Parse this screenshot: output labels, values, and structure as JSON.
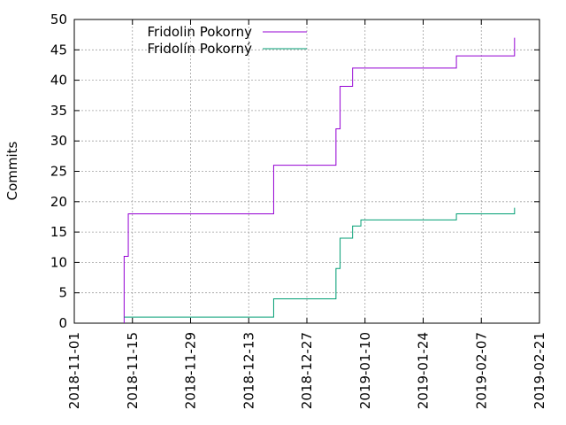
{
  "chart_data": {
    "type": "line",
    "title": "",
    "xlabel": "",
    "ylabel": "Commits",
    "ylim": [
      0,
      50
    ],
    "yticks": [
      0,
      5,
      10,
      15,
      20,
      25,
      30,
      35,
      40,
      45,
      50
    ],
    "xlim": [
      "2018-11-01",
      "2019-02-21"
    ],
    "xticks": [
      "2018-11-01",
      "2018-11-15",
      "2018-11-29",
      "2018-12-13",
      "2018-12-27",
      "2019-01-10",
      "2019-01-24",
      "2019-02-07",
      "2019-02-21"
    ],
    "grid": true,
    "legend_position": "top-left",
    "series": [
      {
        "name": "Fridolin Pokorny",
        "color": "#9400d3",
        "points": [
          [
            "2018-11-13",
            0
          ],
          [
            "2018-11-13",
            7
          ],
          [
            "2018-11-13",
            11
          ],
          [
            "2018-11-14",
            12
          ],
          [
            "2018-11-14",
            18
          ],
          [
            "2018-12-19",
            19
          ],
          [
            "2018-12-19",
            26
          ],
          [
            "2019-01-03",
            27
          ],
          [
            "2019-01-03",
            32
          ],
          [
            "2019-01-04",
            35
          ],
          [
            "2019-01-04",
            39
          ],
          [
            "2019-01-07",
            40
          ],
          [
            "2019-01-07",
            42
          ],
          [
            "2019-02-01",
            43
          ],
          [
            "2019-02-01",
            44
          ],
          [
            "2019-02-15",
            45
          ],
          [
            "2019-02-15",
            47
          ]
        ]
      },
      {
        "name": "Fridolín Pokorný",
        "color": "#009e73",
        "points": [
          [
            "2018-11-13",
            1
          ],
          [
            "2018-12-19",
            1
          ],
          [
            "2018-12-19",
            4
          ],
          [
            "2019-01-03",
            4
          ],
          [
            "2019-01-03",
            9
          ],
          [
            "2019-01-04",
            9
          ],
          [
            "2019-01-04",
            14
          ],
          [
            "2019-01-07",
            14
          ],
          [
            "2019-01-07",
            16
          ],
          [
            "2019-01-09",
            17
          ],
          [
            "2019-02-01",
            17
          ],
          [
            "2019-02-01",
            18
          ],
          [
            "2019-02-15",
            18
          ],
          [
            "2019-02-15",
            19
          ]
        ]
      }
    ]
  }
}
